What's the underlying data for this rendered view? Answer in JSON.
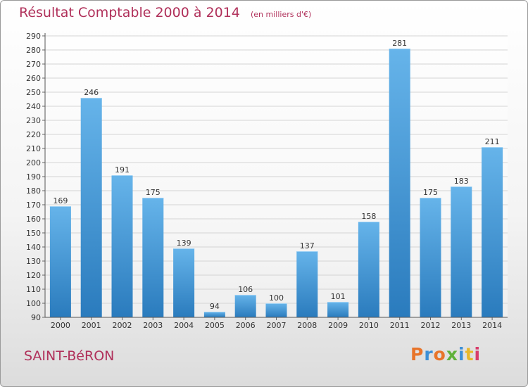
{
  "header": {
    "title": "Résultat Comptable 2000 à 2014",
    "subtitle": "(en milliers d'€)"
  },
  "footer": {
    "town": "SAINT-BéRON",
    "logo_text": "Proxiti",
    "logo_colors": [
      "#e8742a",
      "#3c8fd6",
      "#e8742a",
      "#5fb13b",
      "#3c8fd6",
      "#e8b82a",
      "#d83c6a"
    ]
  },
  "chart_data": {
    "type": "bar",
    "title": "Résultat Comptable 2000 à 2014",
    "subtitle": "(en milliers d'€)",
    "xlabel": "",
    "ylabel": "",
    "categories": [
      "2000",
      "2001",
      "2002",
      "2003",
      "2004",
      "2005",
      "2006",
      "2007",
      "2008",
      "2009",
      "2010",
      "2011",
      "2012",
      "2013",
      "2014"
    ],
    "values": [
      169,
      246,
      191,
      175,
      139,
      94,
      106,
      100,
      137,
      101,
      158,
      281,
      175,
      183,
      211
    ],
    "ylim": [
      90,
      290
    ],
    "ytick_step": 10,
    "grid": true,
    "bar_color_light": "#66b4ea",
    "bar_color_dark": "#2a7bbd",
    "label_color": "#333333"
  }
}
